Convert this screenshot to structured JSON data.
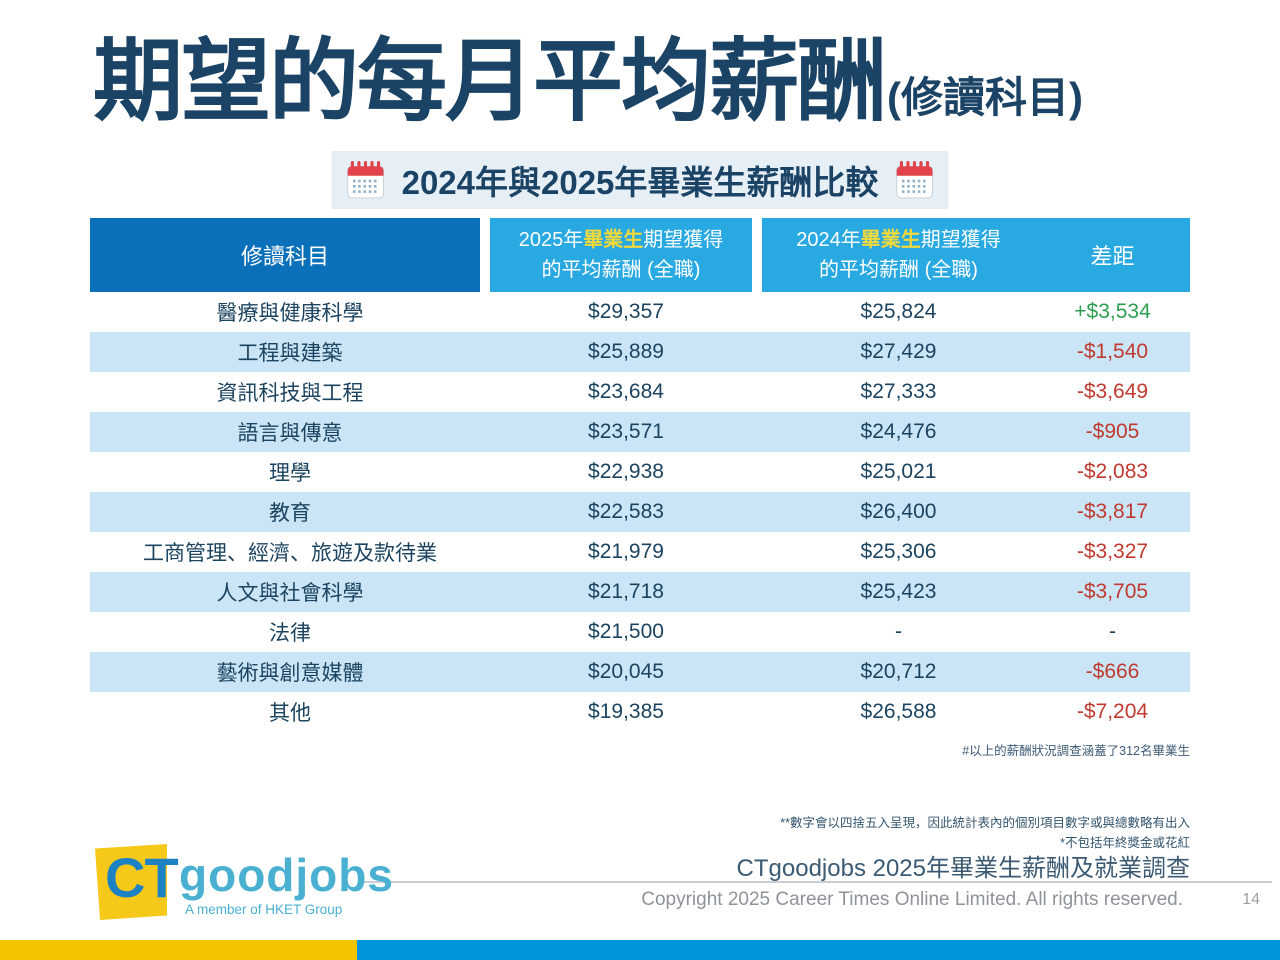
{
  "title": {
    "main": "期望的每月平均薪酬",
    "suffix": "(修讀科目)"
  },
  "subtitle": {
    "icon": "calendar-icon",
    "text": "2024年與2025年畢業生薪酬比較"
  },
  "table": {
    "columns": {
      "subject": "修讀科目",
      "col2025": {
        "prefix": "2025年",
        "highlight": "畢業生",
        "suffix": "期望獲得",
        "line2": "的平均薪酬 (全職)"
      },
      "col2024": {
        "prefix": "2024年",
        "highlight": "畢業生",
        "suffix": "期望獲得",
        "line2": "的平均薪酬 (全職)"
      },
      "diff": "差距"
    },
    "rows": [
      {
        "subject": "醫療與健康科學",
        "salary_2025": "$29,357",
        "salary_2024": "$25,824",
        "diff": "+$3,534",
        "trend": "up"
      },
      {
        "subject": "工程與建築",
        "salary_2025": "$25,889",
        "salary_2024": "$27,429",
        "diff": "-$1,540",
        "trend": "down"
      },
      {
        "subject": "資訊科技與工程",
        "salary_2025": "$23,684",
        "salary_2024": "$27,333",
        "diff": "-$3,649",
        "trend": "down"
      },
      {
        "subject": "語言與傳意",
        "salary_2025": "$23,571",
        "salary_2024": "$24,476",
        "diff": "-$905",
        "trend": "down"
      },
      {
        "subject": "理學",
        "salary_2025": "$22,938",
        "salary_2024": "$25,021",
        "diff": "-$2,083",
        "trend": "down"
      },
      {
        "subject": "教育",
        "salary_2025": "$22,583",
        "salary_2024": "$26,400",
        "diff": "-$3,817",
        "trend": "down"
      },
      {
        "subject": "工商管理、經濟、旅遊及款待業",
        "salary_2025": "$21,979",
        "salary_2024": "$25,306",
        "diff": "-$3,327",
        "trend": "down"
      },
      {
        "subject": "人文與社會科學",
        "salary_2025": "$21,718",
        "salary_2024": "$25,423",
        "diff": "-$3,705",
        "trend": "down"
      },
      {
        "subject": "法律",
        "salary_2025": "$21,500",
        "salary_2024": "-",
        "diff": "-",
        "trend": "none"
      },
      {
        "subject": "藝術與創意媒體",
        "salary_2025": "$20,045",
        "salary_2024": "$20,712",
        "diff": "-$666",
        "trend": "down"
      },
      {
        "subject": "其他",
        "salary_2025": "$19,385",
        "salary_2024": "$26,588",
        "diff": "-$7,204",
        "trend": "down"
      }
    ],
    "note": "#以上的薪酬狀況調查涵蓋了312名畢業生"
  },
  "footer": {
    "note1": "**數字會以四捨五入呈現，因此統計表內的個別項目數字或與總數略有出入",
    "note2": "*不包括年終獎金或花紅",
    "survey_title": "CTgoodjobs 2025年畢業生薪酬及就業調查",
    "copyright": "Copyright 2025 Career Times Online Limited. All rights reserved.",
    "page_number": "14"
  },
  "logo": {
    "ct": "CT",
    "name": "goodjobs",
    "tagline": "A member of HKET Group"
  },
  "colors": {
    "title_navy": "#1b4365",
    "header_dark_blue": "#0b70ba",
    "header_light_blue": "#29a9e1",
    "row_stripe": "#c9e5f6",
    "highlight_yellow": "#f2d93b",
    "positive_green": "#2e9e4f",
    "negative_red": "#c13a30",
    "bar_yellow": "#f5c400",
    "bar_blue": "#0095da",
    "subtitle_bg": "#e7eff6"
  }
}
